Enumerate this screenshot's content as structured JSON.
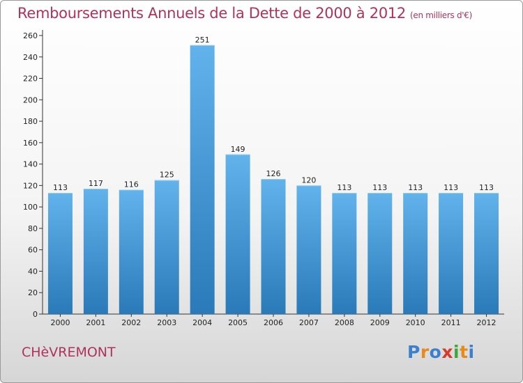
{
  "header": {
    "title": "Remboursements Annuels de la Dette de 2000 à 2012",
    "unit": "(en milliers d'€)"
  },
  "footer": {
    "city": "CHèVREMONT",
    "logo": [
      "P",
      "r",
      "o",
      "x",
      "i",
      "t",
      "i"
    ]
  },
  "colors": {
    "title": "#b0325a",
    "bar_top": "#62b2ec",
    "bar_bottom": "#2a7ab9",
    "logo": [
      "#3b7fd0",
      "#e8891a",
      "#3b7fd0",
      "#d83a2a",
      "#3aa83a",
      "#e8891a",
      "#3b7fd0"
    ]
  },
  "chart_data": {
    "type": "bar",
    "title": "Remboursements Annuels de la Dette de 2000 à 2012",
    "xlabel": "",
    "ylabel": "",
    "grid": false,
    "ylim": [
      0,
      260
    ],
    "yticks": [
      0,
      20,
      40,
      60,
      80,
      100,
      120,
      140,
      160,
      180,
      200,
      220,
      240,
      260
    ],
    "categories": [
      "2000",
      "2001",
      "2002",
      "2003",
      "2004",
      "2005",
      "2006",
      "2007",
      "2008",
      "2009",
      "2010",
      "2011",
      "2012"
    ],
    "values": [
      113,
      117,
      116,
      125,
      251,
      149,
      126,
      120,
      113,
      113,
      113,
      113,
      113
    ],
    "data_labels": [
      "113",
      "117",
      "116",
      "125",
      "251",
      "149",
      "126",
      "120",
      "113",
      "113",
      "113",
      "113",
      "113"
    ]
  }
}
